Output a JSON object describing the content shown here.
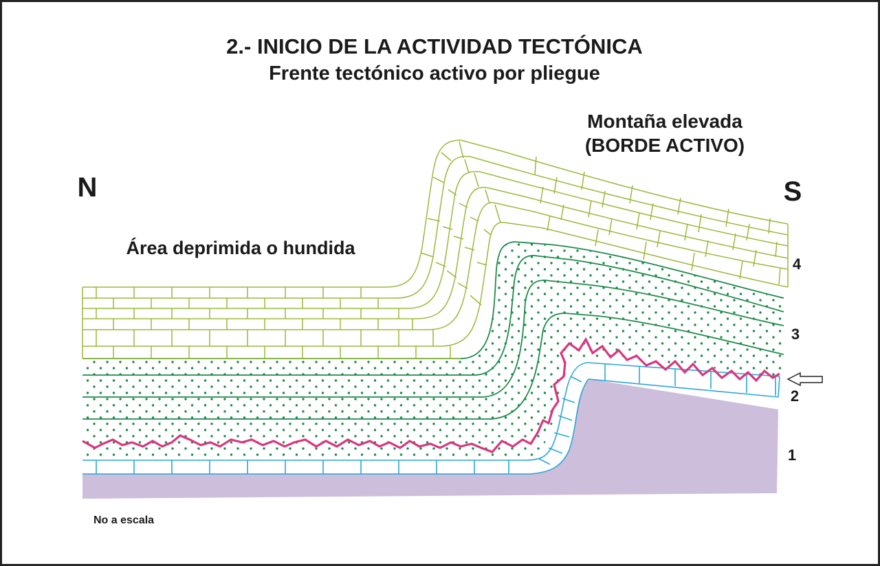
{
  "title": "2.- INICIO DE LA ACTIVIDAD TECTÓNICA",
  "subtitle": "Frente tectónico activo por pliegue",
  "labels": {
    "north": "N",
    "south": "S",
    "depressed_area": "Área deprimida o hundida",
    "mountain_line1": "Montaña elevada",
    "mountain_line2": "(BORDE ACTIVO)",
    "scale_note": "No a escala"
  },
  "layers": [
    {
      "number": "1",
      "description": "basement",
      "color": "#cdbedc"
    },
    {
      "number": "2",
      "description": "thin blue limestone",
      "color": "#2aa6d6"
    },
    {
      "number": "3",
      "description": "dotted green sandstone",
      "color": "#1e8a4a"
    },
    {
      "number": "4",
      "description": "yellow-green limestone",
      "color": "#9ab83a"
    }
  ],
  "unconformity_color": "#d8367f",
  "arrow": {
    "direction": "left",
    "points_to": "unconformity"
  }
}
